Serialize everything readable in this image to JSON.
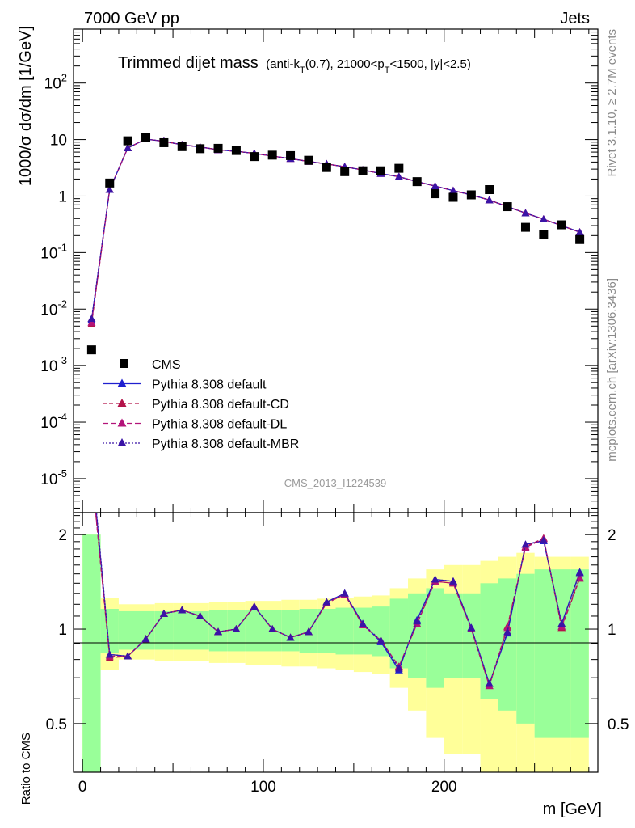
{
  "header": {
    "left": "7000 GeV pp",
    "right": "Jets"
  },
  "side_labels": {
    "rivet": "Rivet 3.1.10, ≥ 2.7M events",
    "mcplots": "mcplots.cern.ch [arXiv:1306.3436]"
  },
  "analysis_id": "CMS_2013_I1224539",
  "chart_data": {
    "type": "scatter",
    "title": "Trimmed dijet mass",
    "subtitle": "(anti-k_T(0.7), 21000<p_T<1500, |y|<2.5)",
    "xlabel": "m [GeV]",
    "ylabel": "1000/σ dσ/dm [1/GeV]",
    "ratio_ylabel": "Ratio to CMS",
    "xlim": [
      -5,
      285
    ],
    "ylim": [
      2.5e-06,
      900
    ],
    "ylog": true,
    "ratio_ylim": [
      0.35,
      2.35
    ],
    "ratio_ylog": true,
    "xticks": [
      0,
      100,
      200
    ],
    "yticks": [
      {
        "v": 1e-05,
        "l": "10^-5"
      },
      {
        "v": 0.0001,
        "l": "10^-4"
      },
      {
        "v": 0.001,
        "l": "10^-3"
      },
      {
        "v": 0.01,
        "l": "10^-2"
      },
      {
        "v": 0.1,
        "l": "10^-1"
      },
      {
        "v": 1,
        "l": "1"
      },
      {
        "v": 10,
        "l": "10"
      },
      {
        "v": 100,
        "l": "10^2"
      }
    ],
    "ratio_yticks": [
      {
        "v": 0.5,
        "l": "0.5"
      },
      {
        "v": 1,
        "l": "1"
      },
      {
        "v": 2,
        "l": "2"
      }
    ],
    "legend_position": "bottom-left",
    "colors": {
      "data": "#000000",
      "default": "#1f1fcf",
      "cd": "#b3144a",
      "dl": "#b3147a",
      "mbr": "#3a14a6",
      "band_inner": "#99ff99",
      "band_outer": "#ffff99"
    },
    "x": [
      5,
      15,
      25,
      35,
      45,
      55,
      65,
      75,
      85,
      95,
      105,
      115,
      125,
      135,
      145,
      155,
      165,
      175,
      185,
      195,
      205,
      215,
      225,
      235,
      245,
      255,
      265,
      275
    ],
    "data": {
      "name": "CMS",
      "y": [
        0.0019,
        1.7,
        9.5,
        11,
        8.8,
        7.5,
        6.9,
        7.0,
        6.4,
        5.0,
        5.3,
        5.2,
        4.3,
        3.2,
        2.7,
        2.8,
        2.8,
        3.1,
        1.8,
        1.1,
        0.95,
        1.05,
        1.3,
        0.65,
        0.28,
        0.21,
        0.31,
        0.17
      ],
      "band_inner_rel": [
        1.0,
        0.16,
        0.14,
        0.14,
        0.14,
        0.14,
        0.14,
        0.15,
        0.15,
        0.15,
        0.15,
        0.15,
        0.16,
        0.16,
        0.17,
        0.17,
        0.18,
        0.25,
        0.3,
        0.35,
        0.3,
        0.3,
        0.4,
        0.45,
        0.5,
        0.55,
        0.55,
        0.55
      ],
      "band_outer_rel": [
        1.0,
        0.26,
        0.2,
        0.2,
        0.21,
        0.21,
        0.21,
        0.22,
        0.22,
        0.23,
        0.23,
        0.24,
        0.24,
        0.25,
        0.26,
        0.27,
        0.28,
        0.35,
        0.45,
        0.55,
        0.6,
        0.6,
        0.65,
        0.7,
        0.75,
        0.7,
        0.7,
        0.7
      ]
    },
    "series": [
      {
        "name": "Pythia 8.308 default",
        "y": [
          0.0065,
          1.3,
          7.1,
          10.2,
          9.3,
          8.1,
          7.4,
          6.6,
          6.2,
          5.7,
          5.1,
          4.6,
          4.1,
          3.7,
          3.3,
          2.9,
          2.5,
          2.2,
          1.8,
          1.5,
          1.25,
          1.05,
          0.85,
          0.65,
          0.5,
          0.39,
          0.3,
          0.23
        ],
        "ratio": [
          3.4,
          0.83,
          0.82,
          0.93,
          1.12,
          1.15,
          1.1,
          0.98,
          1.0,
          1.18,
          1.0,
          0.94,
          0.98,
          1.22,
          1.3,
          1.04,
          0.91,
          0.74,
          1.07,
          1.44,
          1.42,
          1.01,
          0.67,
          0.97,
          1.86,
          1.91,
          1.04,
          1.52
        ]
      },
      {
        "name": "Pythia 8.308 default-CD",
        "y": [
          0.0055,
          1.3,
          7.1,
          10.2,
          9.3,
          8.1,
          7.4,
          6.6,
          6.2,
          5.7,
          5.1,
          4.6,
          4.1,
          3.7,
          3.3,
          2.9,
          2.5,
          2.2,
          1.8,
          1.5,
          1.25,
          1.05,
          0.85,
          0.65,
          0.5,
          0.39,
          0.3,
          0.23
        ],
        "ratio": [
          3.2,
          0.81,
          0.82,
          0.93,
          1.12,
          1.15,
          1.1,
          0.98,
          1.0,
          1.18,
          1.0,
          0.94,
          0.98,
          1.21,
          1.29,
          1.03,
          0.92,
          0.76,
          1.04,
          1.42,
          1.4,
          1.0,
          0.66,
          1.02,
          1.83,
          1.95,
          1.01,
          1.45
        ]
      },
      {
        "name": "Pythia 8.308 default-DL",
        "y": [
          0.0058,
          1.3,
          7.1,
          10.2,
          9.3,
          8.1,
          7.4,
          6.6,
          6.2,
          5.7,
          5.1,
          4.6,
          4.1,
          3.7,
          3.3,
          2.9,
          2.5,
          2.2,
          1.8,
          1.5,
          1.25,
          1.05,
          0.85,
          0.65,
          0.5,
          0.39,
          0.3,
          0.23
        ],
        "ratio": [
          3.2,
          0.82,
          0.82,
          0.93,
          1.12,
          1.15,
          1.1,
          0.98,
          1.0,
          1.18,
          1.0,
          0.94,
          0.98,
          1.21,
          1.29,
          1.03,
          0.92,
          0.76,
          1.04,
          1.42,
          1.4,
          1.0,
          0.66,
          1.01,
          1.82,
          1.94,
          1.02,
          1.46
        ]
      },
      {
        "name": "Pythia 8.308 default-MBR",
        "y": [
          0.0068,
          1.3,
          7.1,
          10.2,
          9.3,
          8.1,
          7.4,
          6.6,
          6.2,
          5.7,
          5.1,
          4.6,
          4.1,
          3.7,
          3.3,
          2.9,
          2.5,
          2.2,
          1.8,
          1.5,
          1.25,
          1.05,
          0.85,
          0.65,
          0.5,
          0.39,
          0.3,
          0.23
        ],
        "ratio": [
          3.5,
          0.83,
          0.82,
          0.93,
          1.12,
          1.15,
          1.1,
          0.98,
          1.0,
          1.18,
          1.0,
          0.94,
          0.98,
          1.22,
          1.3,
          1.04,
          0.92,
          0.75,
          1.06,
          1.44,
          1.42,
          1.01,
          0.67,
          0.98,
          1.86,
          1.92,
          1.04,
          1.51
        ]
      }
    ]
  }
}
